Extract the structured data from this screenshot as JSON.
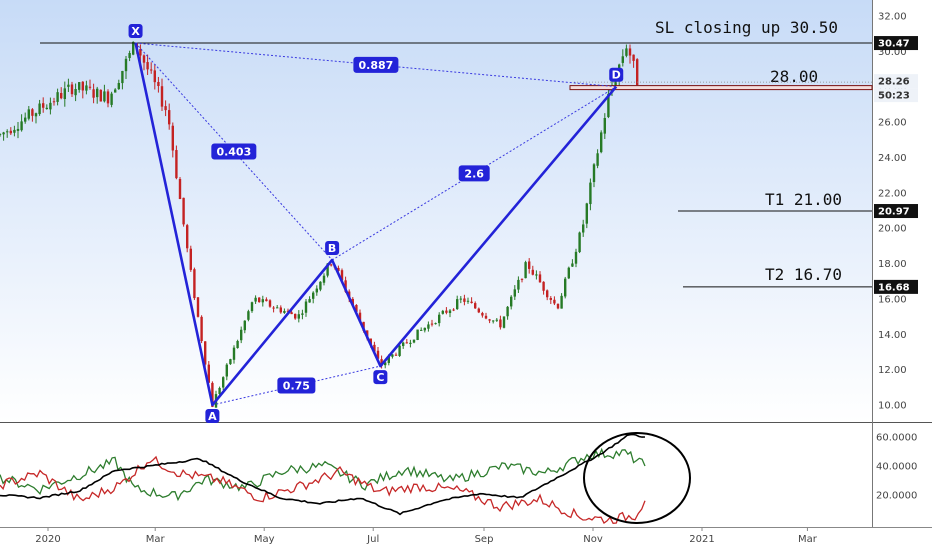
{
  "colors": {
    "background_top": "#c7dbf7",
    "background_bottom": "#ffffff",
    "pattern": "#2323d8",
    "pattern_dotted": "#3a3ae0",
    "candle_up": "#267a26",
    "candle_down": "#c42222",
    "rsi_green": "#2e7d2e",
    "rsi_red": "#c62828",
    "rsi_black": "#000000"
  },
  "chart_data": [
    {
      "type": "candlestick",
      "title": "",
      "ylim": [
        9,
        33
      ],
      "y_ticks": [
        "10.00",
        "12.00",
        "14.00",
        "16.00",
        "18.00",
        "20.00",
        "22.00",
        "24.00",
        "26.00",
        "28.00",
        "30.00",
        "32.00"
      ],
      "x_ticks": [
        "2020",
        "Mar",
        "May",
        "Jul",
        "Sep",
        "Nov",
        "2021",
        "Mar"
      ],
      "price_path": [
        {
          "date": "2019-12-01",
          "price": 25.0
        },
        {
          "date": "2020-01-15",
          "price": 28.0
        },
        {
          "date": "2020-02-04",
          "price": 27.4
        },
        {
          "date": "2020-02-19",
          "price": 30.47
        },
        {
          "date": "2020-03-08",
          "price": 26.5
        },
        {
          "date": "2020-03-20",
          "price": 18.0
        },
        {
          "date": "2020-04-02",
          "price": 10.0
        },
        {
          "date": "2020-04-25",
          "price": 16.0
        },
        {
          "date": "2020-05-20",
          "price": 15.0
        },
        {
          "date": "2020-06-08",
          "price": 18.2
        },
        {
          "date": "2020-07-05",
          "price": 12.2
        },
        {
          "date": "2020-07-25",
          "price": 14.0
        },
        {
          "date": "2020-08-20",
          "price": 16.0
        },
        {
          "date": "2020-09-10",
          "price": 14.5
        },
        {
          "date": "2020-09-25",
          "price": 18.0
        },
        {
          "date": "2020-10-12",
          "price": 15.5
        },
        {
          "date": "2020-10-26",
          "price": 20.0
        },
        {
          "date": "2020-11-10",
          "price": 27.6
        },
        {
          "date": "2020-11-20",
          "price": 30.47
        },
        {
          "date": "2020-11-26",
          "price": 28.26
        }
      ],
      "pattern_points": [
        {
          "label": "X",
          "date": "2020-02-19",
          "price": 30.47
        },
        {
          "label": "A",
          "date": "2020-04-02",
          "price": 10.0
        },
        {
          "label": "B",
          "date": "2020-06-08",
          "price": 18.2
        },
        {
          "label": "C",
          "date": "2020-07-05",
          "price": 12.2
        },
        {
          "label": "D",
          "date": "2020-11-14",
          "price": 28.0
        }
      ],
      "ratios": [
        {
          "label": "0.887",
          "from": "X",
          "to": "D"
        },
        {
          "label": "0.403",
          "from": "X",
          "to": "B"
        },
        {
          "label": "2.6",
          "from": "B",
          "to": "D"
        },
        {
          "label": "0.75",
          "from": "A",
          "to": "C"
        }
      ],
      "levels": [
        {
          "label": "SL closing up 30.50",
          "price": 30.47,
          "box": "30.47"
        },
        {
          "label": "28.00",
          "price": 27.95
        },
        {
          "label": "T1   21.00",
          "price": 20.97,
          "box": "20.97"
        },
        {
          "label": "T2   16.70",
          "price": 16.68,
          "box": "16.68"
        }
      ],
      "last_price_box": "28.26",
      "countdown_box": "50:23"
    },
    {
      "type": "line",
      "ylim": [
        0,
        68
      ],
      "y_ticks": [
        "20.0000",
        "40.0000",
        "60.0000"
      ],
      "series": [
        {
          "color": "green",
          "points": [
            [
              0,
              32
            ],
            [
              40,
              24
            ],
            [
              80,
              34
            ],
            [
              115,
              43
            ],
            [
              135,
              24
            ],
            [
              175,
              19
            ],
            [
              205,
              31
            ],
            [
              245,
              25
            ],
            [
              285,
              37
            ],
            [
              325,
              40
            ],
            [
              365,
              27
            ],
            [
              405,
              38
            ],
            [
              450,
              30
            ],
            [
              505,
              40
            ],
            [
              545,
              35
            ],
            [
              590,
              48
            ],
            [
              625,
              49
            ],
            [
              645,
              40
            ]
          ]
        },
        {
          "color": "red",
          "points": [
            [
              0,
              27
            ],
            [
              40,
              35
            ],
            [
              80,
              16
            ],
            [
              120,
              27
            ],
            [
              150,
              45
            ],
            [
              180,
              35
            ],
            [
              220,
              30
            ],
            [
              260,
              18
            ],
            [
              300,
              26
            ],
            [
              340,
              36
            ],
            [
              380,
              22
            ],
            [
              420,
              26
            ],
            [
              460,
              23
            ],
            [
              500,
              12
            ],
            [
              540,
              17
            ],
            [
              580,
              5
            ],
            [
              610,
              3
            ],
            [
              635,
              6
            ],
            [
              645,
              16
            ]
          ]
        },
        {
          "color": "black",
          "points": [
            [
              0,
              20
            ],
            [
              40,
              18
            ],
            [
              80,
              23
            ],
            [
              115,
              37
            ],
            [
              150,
              40
            ],
            [
              200,
              45
            ],
            [
              240,
              30
            ],
            [
              280,
              18
            ],
            [
              320,
              14
            ],
            [
              360,
              18
            ],
            [
              400,
              7
            ],
            [
              440,
              16
            ],
            [
              480,
              21
            ],
            [
              520,
              18
            ],
            [
              560,
              33
            ],
            [
              600,
              48
            ],
            [
              630,
              62
            ],
            [
              645,
              60
            ]
          ]
        }
      ]
    }
  ]
}
